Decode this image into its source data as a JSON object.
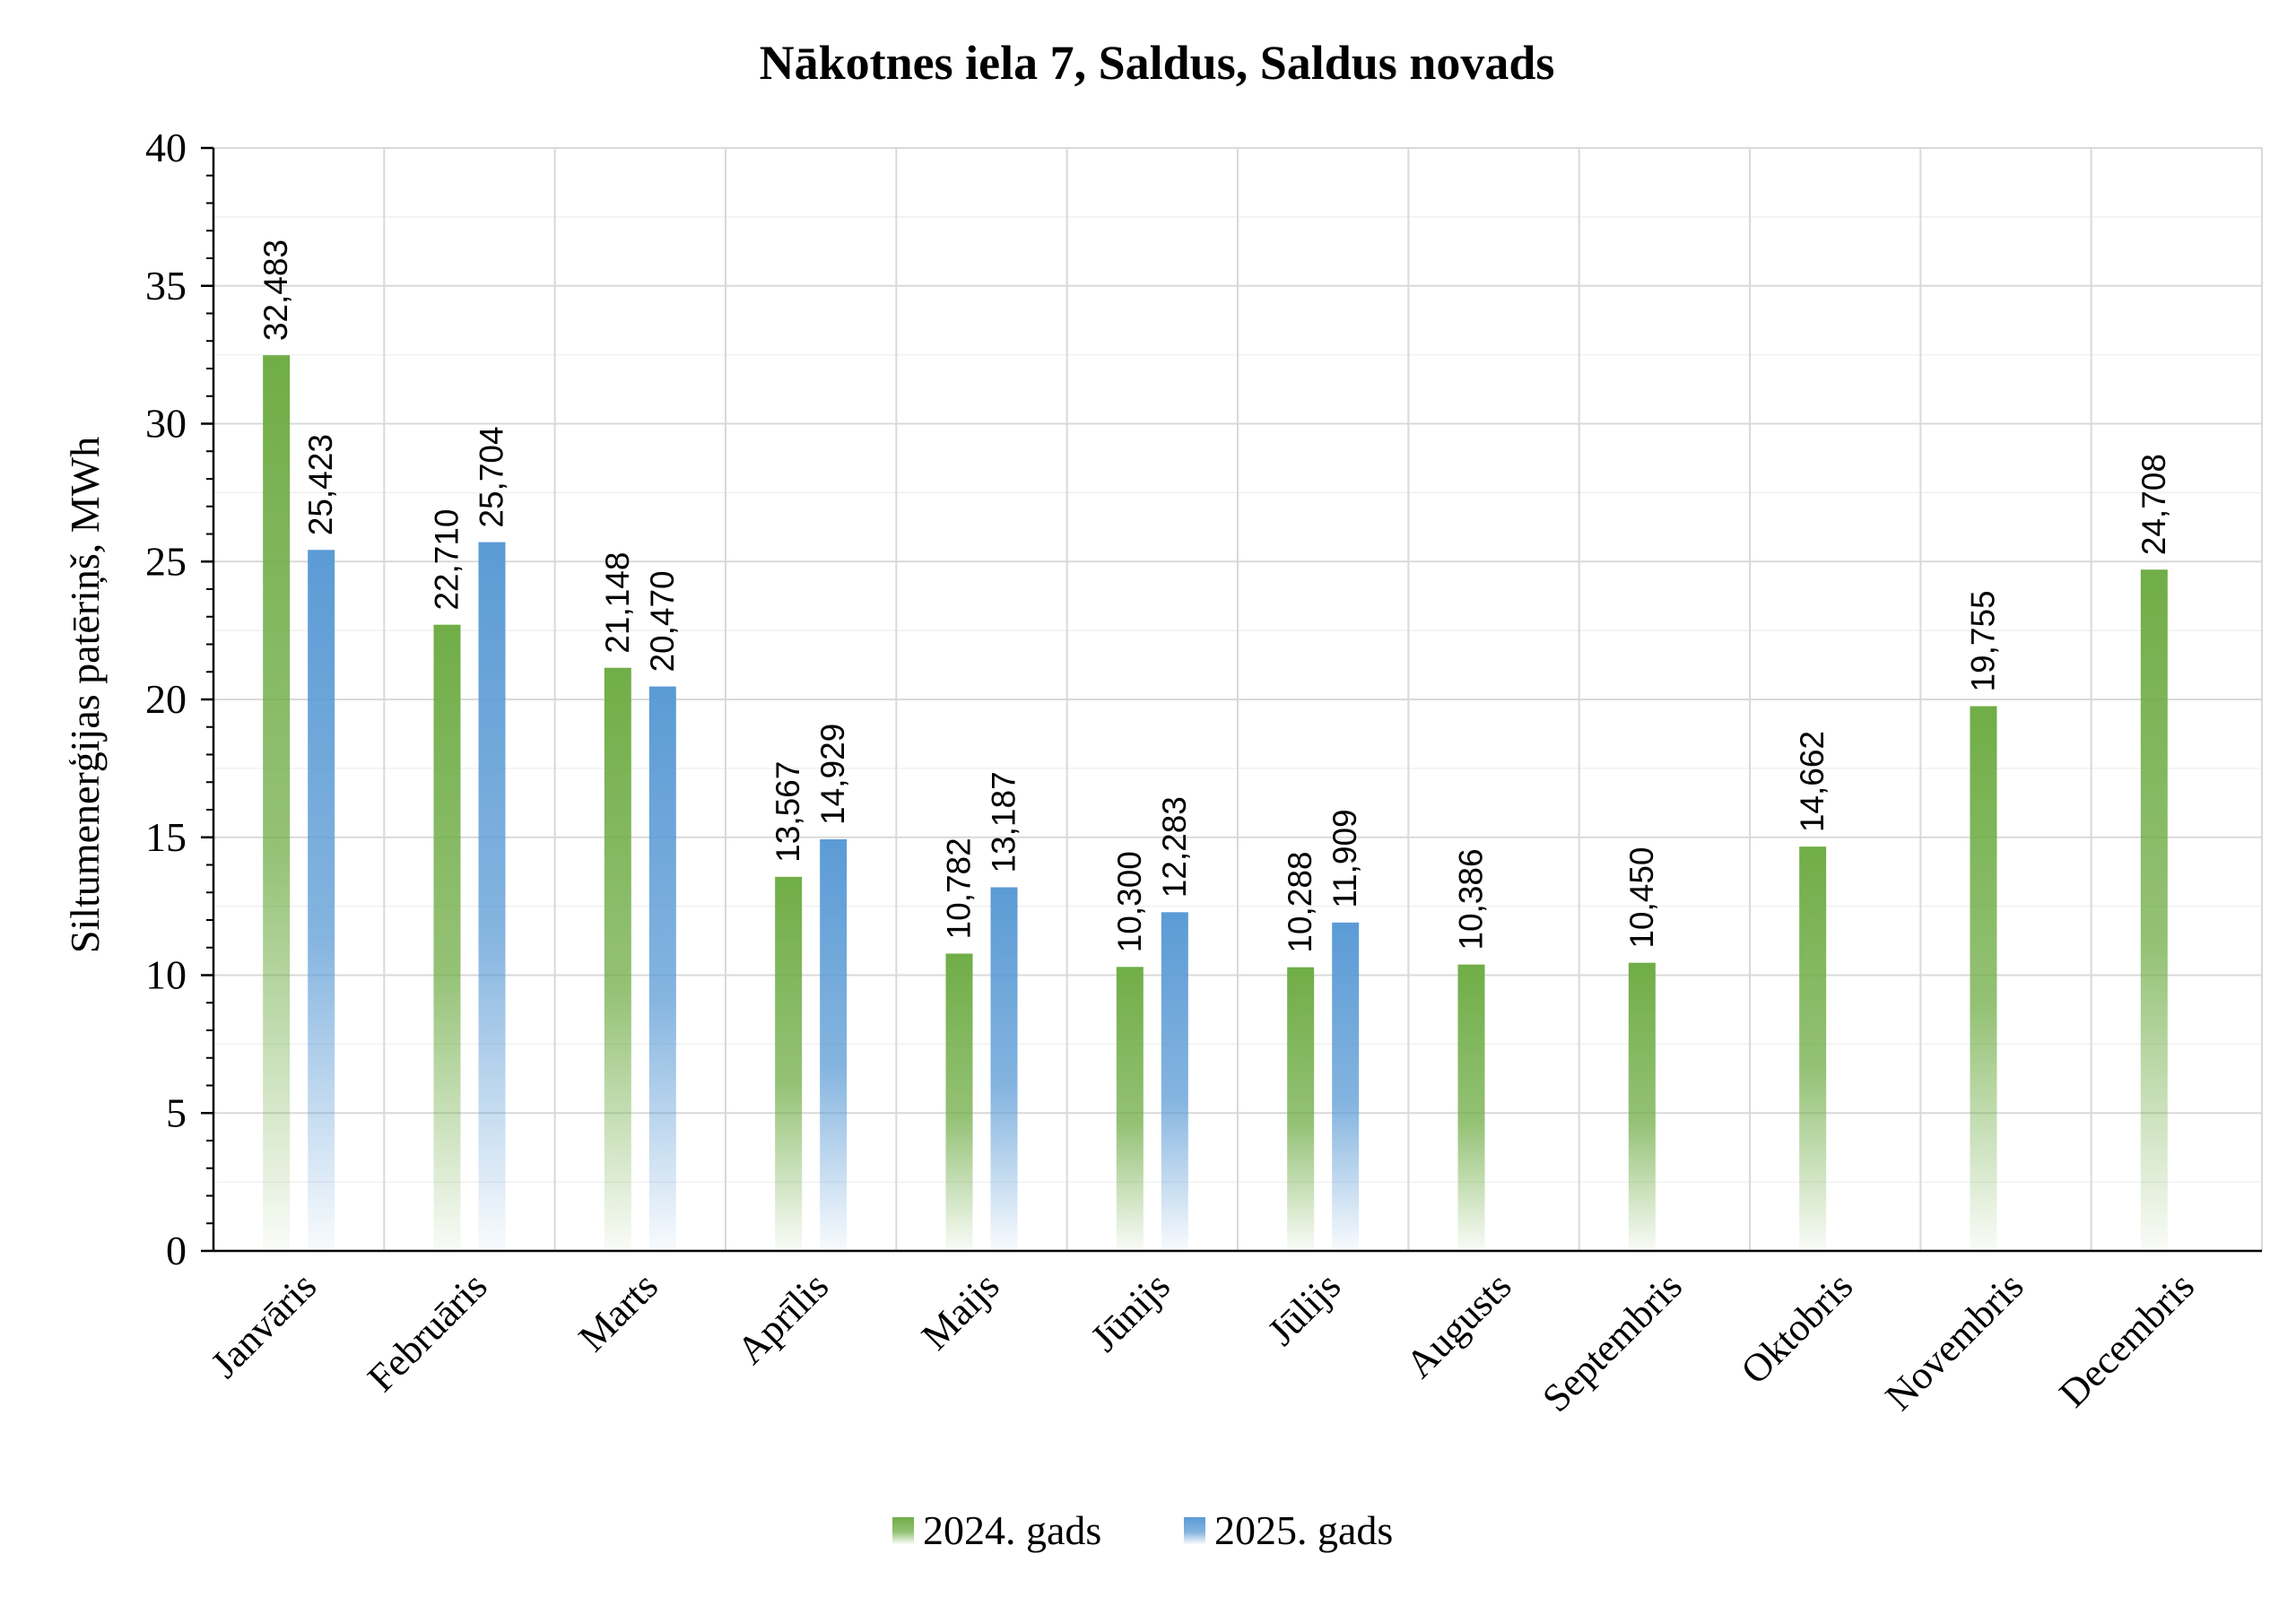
{
  "chart_data": {
    "type": "bar",
    "title": "Nākotnes iela 7, Saldus, Saldus novads",
    "xlabel": "",
    "ylabel": "Siltumenerģijas patēriņš, MWh",
    "ylim": [
      0,
      40
    ],
    "yticks": [
      0,
      5,
      10,
      15,
      20,
      25,
      30,
      35,
      40
    ],
    "grid": true,
    "legend_position": "bottom",
    "categories": [
      "Janvāris",
      "Februāris",
      "Marts",
      "Aprīlis",
      "Maijs",
      "Jūnijs",
      "Jūlijs",
      "Augusts",
      "Septembris",
      "Oktobris",
      "Novembris",
      "Decembris"
    ],
    "series": [
      {
        "name": "2024. gads",
        "color": "#70ad47",
        "values": [
          32.483,
          22.71,
          21.148,
          13.567,
          10.782,
          10.3,
          10.288,
          10.386,
          10.45,
          14.662,
          19.755,
          24.708
        ],
        "labels": [
          "32,483",
          "22,710",
          "21,148",
          "13,567",
          "10,782",
          "10,300",
          "10,288",
          "10,386",
          "10,450",
          "14,662",
          "19,755",
          "24,708"
        ]
      },
      {
        "name": "2025. gads",
        "color": "#5b9bd5",
        "values": [
          25.423,
          25.704,
          20.47,
          14.929,
          13.187,
          12.283,
          11.909,
          null,
          null,
          null,
          null,
          null
        ],
        "labels": [
          "25,423",
          "25,704",
          "20,470",
          "14,929",
          "13,187",
          "12,283",
          "11,909",
          null,
          null,
          null,
          null,
          null
        ]
      }
    ]
  }
}
